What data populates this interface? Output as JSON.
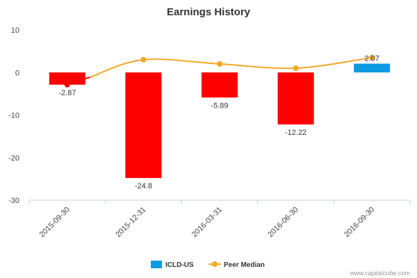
{
  "chart_data": {
    "type": "bar",
    "title": "Earnings History",
    "categories": [
      "2015-09-30",
      "2015-12-31",
      "2016-03-31",
      "2016-06-30",
      "2016-09-30"
    ],
    "series": [
      {
        "name": "ICLD-US",
        "values": [
          -2.87,
          -24.8,
          -5.89,
          -12.22,
          2.07
        ],
        "labels": [
          "-2.87",
          "-24.8",
          "-5.89",
          "-12.22",
          "2.07"
        ],
        "color": "#0b9be3",
        "negative_color": "#ff0000"
      },
      {
        "name": "Peer Median",
        "type": "line",
        "values": [
          -2.87,
          3.0,
          2.0,
          1.0,
          3.5
        ],
        "color": "#f5a623",
        "first_segment_color": "#ff0000"
      }
    ],
    "ylim": [
      -30,
      10
    ],
    "yticks": [
      10,
      0,
      -10,
      -20,
      -30
    ],
    "ytick_labels": [
      "10",
      "0",
      "-10",
      "-20",
      "-30"
    ],
    "grid": false,
    "legend_position": "bottom-center"
  },
  "credit": "www.capitalcube.com"
}
